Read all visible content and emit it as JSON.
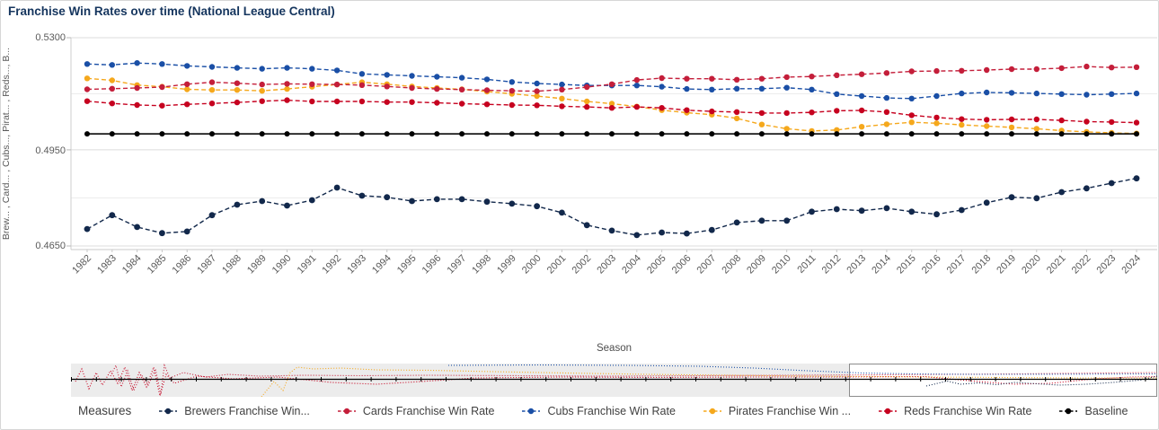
{
  "title": "Franchise Win Rates over time (National League Central)",
  "y_axis": {
    "title": "Brew... , Card... , Cubs..., Pirat... , Reds..., B...",
    "tick_labels": [
      "0.5300",
      "0.4950",
      "0.4650"
    ]
  },
  "x_axis": {
    "title": "Season"
  },
  "legend": {
    "title": "Measures"
  },
  "chart_data": {
    "type": "line",
    "title": "Franchise Win Rates over time (National League Central)",
    "xlabel": "Season",
    "ylabel": "Brew... , Card... , Cubs..., Pirat... , Reds..., B...",
    "marker_style": "dashed line with round markers",
    "legend_position": "bottom",
    "grid": "horizontal",
    "ylim": [
      0.4639,
      0.53
    ],
    "yticks": [
      0.53,
      0.495,
      0.465
    ],
    "ytick_labels": [
      "0.5300",
      "0.4950",
      "0.4650"
    ],
    "minor_gridlines": [
      0.5125,
      0.48
    ],
    "x": [
      1982,
      1983,
      1984,
      1985,
      1986,
      1987,
      1988,
      1989,
      1990,
      1991,
      1992,
      1993,
      1994,
      1995,
      1996,
      1997,
      1998,
      1999,
      2000,
      2001,
      2002,
      2003,
      2004,
      2005,
      2006,
      2007,
      2008,
      2009,
      2010,
      2011,
      2012,
      2013,
      2014,
      2015,
      2016,
      2017,
      2018,
      2019,
      2020,
      2021,
      2022,
      2023,
      2024
    ],
    "series": [
      {
        "name": "Brewers Franchise Win...",
        "color": "#12284b",
        "values": [
          0.4703,
          0.4746,
          0.4709,
          0.469,
          0.4695,
          0.4746,
          0.4779,
          0.479,
          0.4776,
          0.4793,
          0.4832,
          0.4807,
          0.4802,
          0.479,
          0.4796,
          0.4796,
          0.4788,
          0.4782,
          0.4774,
          0.4754,
          0.4715,
          0.4698,
          0.4684,
          0.4692,
          0.4689,
          0.47,
          0.4723,
          0.4729,
          0.4729,
          0.4757,
          0.4765,
          0.476,
          0.4768,
          0.4757,
          0.4749,
          0.4762,
          0.4785,
          0.4802,
          0.4799,
          0.4818,
          0.483,
          0.4846,
          0.4861
        ]
      },
      {
        "name": "Cards Franchise Win Rate",
        "color": "#c41e3a",
        "values": [
          0.5139,
          0.5141,
          0.5143,
          0.5146,
          0.5155,
          0.5161,
          0.5158,
          0.5154,
          0.5156,
          0.5155,
          0.5154,
          0.5152,
          0.5148,
          0.5143,
          0.514,
          0.5138,
          0.5136,
          0.5134,
          0.5133,
          0.5138,
          0.5146,
          0.5155,
          0.5168,
          0.5174,
          0.5172,
          0.5172,
          0.5169,
          0.5172,
          0.5177,
          0.5179,
          0.5183,
          0.5186,
          0.519,
          0.5195,
          0.5196,
          0.5197,
          0.5199,
          0.5202,
          0.5202,
          0.5205,
          0.521,
          0.5207,
          0.5208
        ]
      },
      {
        "name": "Cubs Franchise Win Rate",
        "color": "#1a4fa6",
        "values": [
          0.5218,
          0.5215,
          0.5221,
          0.5218,
          0.5212,
          0.5209,
          0.5206,
          0.5203,
          0.5206,
          0.5203,
          0.5198,
          0.5187,
          0.5184,
          0.5181,
          0.5178,
          0.5175,
          0.517,
          0.5162,
          0.5157,
          0.5154,
          0.5151,
          0.5151,
          0.5151,
          0.5147,
          0.514,
          0.5138,
          0.5141,
          0.5141,
          0.5144,
          0.5138,
          0.5124,
          0.5118,
          0.5112,
          0.511,
          0.5118,
          0.5126,
          0.5129,
          0.5128,
          0.5126,
          0.5124,
          0.5122,
          0.5124,
          0.5126
        ]
      },
      {
        "name": "Pirates Franchise Win ...",
        "color": "#f5a81c",
        "values": [
          0.5173,
          0.5167,
          0.5152,
          0.5147,
          0.5139,
          0.5137,
          0.5137,
          0.5134,
          0.514,
          0.5147,
          0.5154,
          0.5161,
          0.5155,
          0.5148,
          0.5143,
          0.5139,
          0.5132,
          0.5125,
          0.5118,
          0.511,
          0.5101,
          0.5094,
          0.5085,
          0.5074,
          0.5066,
          0.506,
          0.5048,
          0.5029,
          0.5016,
          0.5009,
          0.5012,
          0.5022,
          0.503,
          0.5036,
          0.5033,
          0.5028,
          0.5024,
          0.502,
          0.5016,
          0.501,
          0.5006,
          0.5003,
          0.5001
        ]
      },
      {
        "name": "Reds Franchise Win Rate",
        "color": "#c6011f",
        "values": [
          0.5102,
          0.5095,
          0.509,
          0.5088,
          0.5092,
          0.5095,
          0.5098,
          0.5102,
          0.5105,
          0.5101,
          0.5101,
          0.5101,
          0.5099,
          0.5099,
          0.5097,
          0.5094,
          0.5092,
          0.509,
          0.5089,
          0.5086,
          0.5084,
          0.5081,
          0.5084,
          0.5081,
          0.5074,
          0.507,
          0.5068,
          0.5065,
          0.5065,
          0.5067,
          0.5072,
          0.5073,
          0.5068,
          0.5058,
          0.5051,
          0.5046,
          0.5044,
          0.5045,
          0.5045,
          0.5042,
          0.5038,
          0.5037,
          0.5035
        ]
      },
      {
        "name": "Baseline",
        "color": "#000000",
        "values": [
          0.5,
          0.5,
          0.5,
          0.5,
          0.5,
          0.5,
          0.5,
          0.5,
          0.5,
          0.5,
          0.5,
          0.5,
          0.5,
          0.5,
          0.5,
          0.5,
          0.5,
          0.5,
          0.5,
          0.5,
          0.5,
          0.5,
          0.5,
          0.5,
          0.5,
          0.5,
          0.5,
          0.5,
          0.5,
          0.5,
          0.5,
          0.5,
          0.5,
          0.5,
          0.5,
          0.5,
          0.5,
          0.5,
          0.5,
          0.5,
          0.5,
          0.5,
          0.5
        ]
      }
    ]
  }
}
